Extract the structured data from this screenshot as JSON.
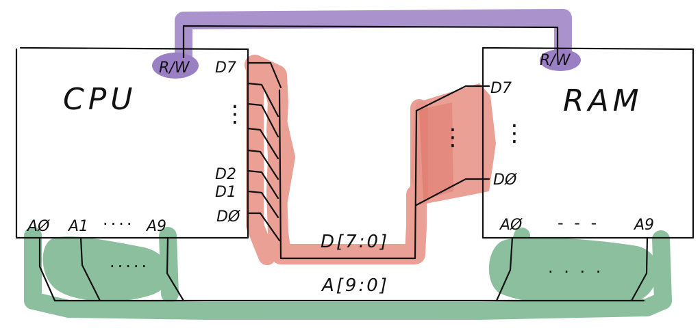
{
  "diagram": {
    "cpu": {
      "label": "CPU",
      "rw": "R/W",
      "data_pins": [
        "D7",
        "D2",
        "D1",
        "DØ"
      ],
      "data_ellipsis": "⋮",
      "addr_pins": [
        "AØ",
        "A1",
        "A9"
      ],
      "addr_ellipsis": "····"
    },
    "ram": {
      "label": "RAM",
      "rw": "R/W",
      "data_pins": [
        "D7",
        "DØ"
      ],
      "data_ellipsis": "⋮",
      "addr_pins": [
        "AØ",
        "A9"
      ],
      "addr_ellipsis": "- - -"
    },
    "buses": {
      "data_bus": "D[7:0]",
      "addr_bus": "A[9:0]",
      "rw_line": "R/W"
    },
    "bus_ellipsis": [
      "·····",
      "· · · ·"
    ],
    "colors": {
      "rw": "#9b7fc4",
      "data": "#e8968a",
      "data_dark": "#e07466",
      "address": "#78b48e",
      "ink": "#111111"
    }
  }
}
